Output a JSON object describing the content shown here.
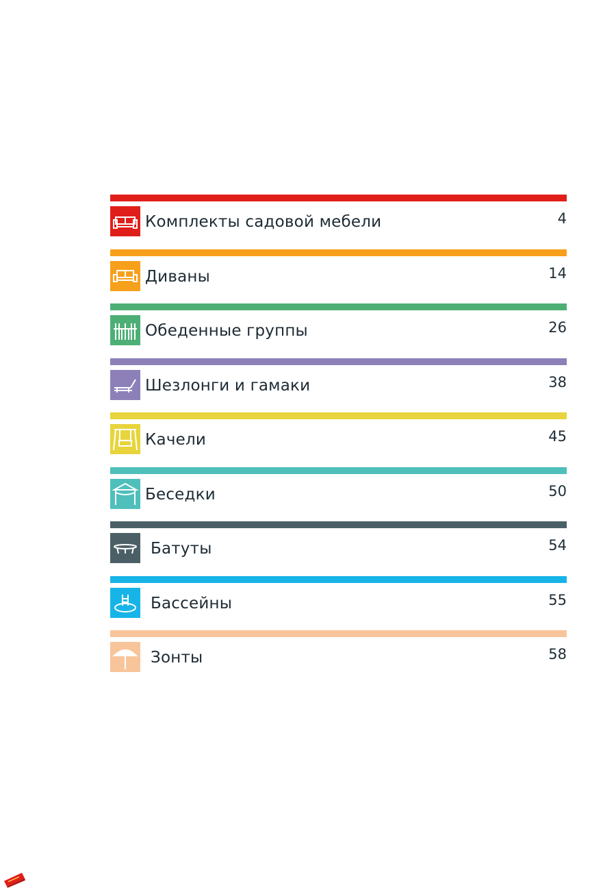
{
  "toc": {
    "entries": [
      {
        "title": "Комплекты садовой мебели",
        "page": "4",
        "color": "#e01f1a",
        "icon": "sofa-set-icon"
      },
      {
        "title": "Диваны",
        "page": "14",
        "color": "#f7a01c",
        "icon": "sofa-icon"
      },
      {
        "title": "Обеденные группы",
        "page": "26",
        "color": "#4daf75",
        "icon": "dining-set-icon"
      },
      {
        "title": "Шезлонги и гамаки",
        "page": "38",
        "color": "#8d80b9",
        "icon": "sunlounger-icon"
      },
      {
        "title": "Качели",
        "page": "45",
        "color": "#e8d43c",
        "icon": "garden-swing-icon"
      },
      {
        "title": "Беседки",
        "page": "50",
        "color": "#4fbfbb",
        "icon": "gazebo-icon"
      },
      {
        "title": "Батуты",
        "page": "54",
        "color": "#4b6066",
        "icon": "trampoline-icon"
      },
      {
        "title": "Бассейны",
        "page": "55",
        "color": "#17b4e8",
        "icon": "pool-icon"
      },
      {
        "title": "Зонты",
        "page": "58",
        "color": "#f8c59b",
        "icon": "umbrella-icon"
      }
    ]
  },
  "logo": {
    "icon": "brand-logo-icon",
    "color": "#e01f1a"
  }
}
